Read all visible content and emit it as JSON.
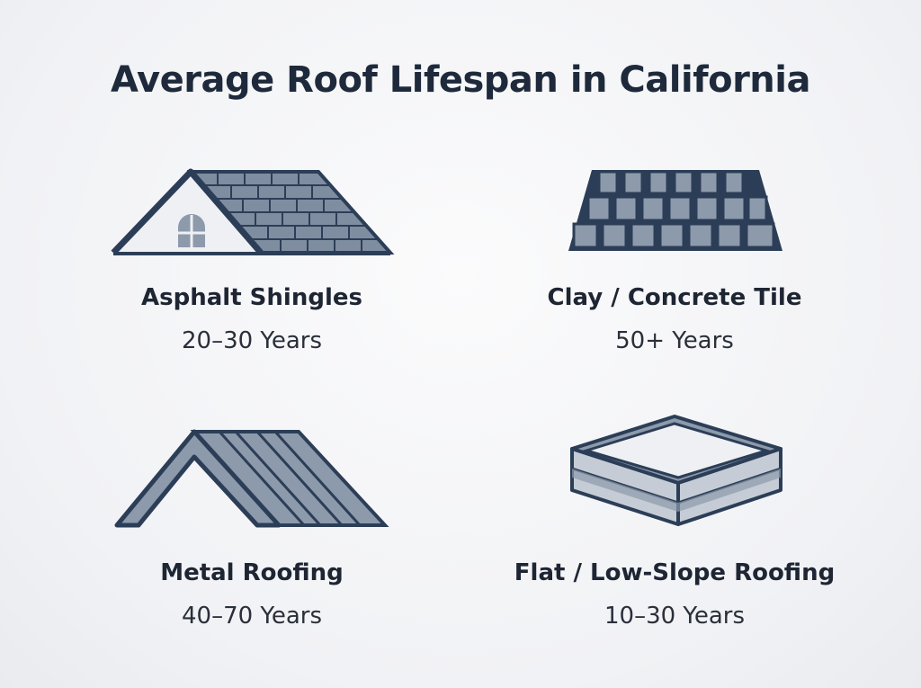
{
  "title": "Average Roof Lifespan in California",
  "colors": {
    "outline": "#2c3e57",
    "fill": "#8d9aab",
    "light": "#c5ccd6",
    "text": "#1e2a3b"
  },
  "items": [
    {
      "icon": "asphalt-shingle-roof-icon",
      "label": "Asphalt Shingles",
      "years": "20–30 Years"
    },
    {
      "icon": "clay-tile-roof-icon",
      "label": "Clay / Concrete Tile",
      "years": "50+ Years"
    },
    {
      "icon": "metal-roof-icon",
      "label": "Metal Roofing",
      "years": "40–70 Years"
    },
    {
      "icon": "flat-roof-icon",
      "label": "Flat / Low-Slope Roofing",
      "years": "10–30 Years"
    }
  ]
}
